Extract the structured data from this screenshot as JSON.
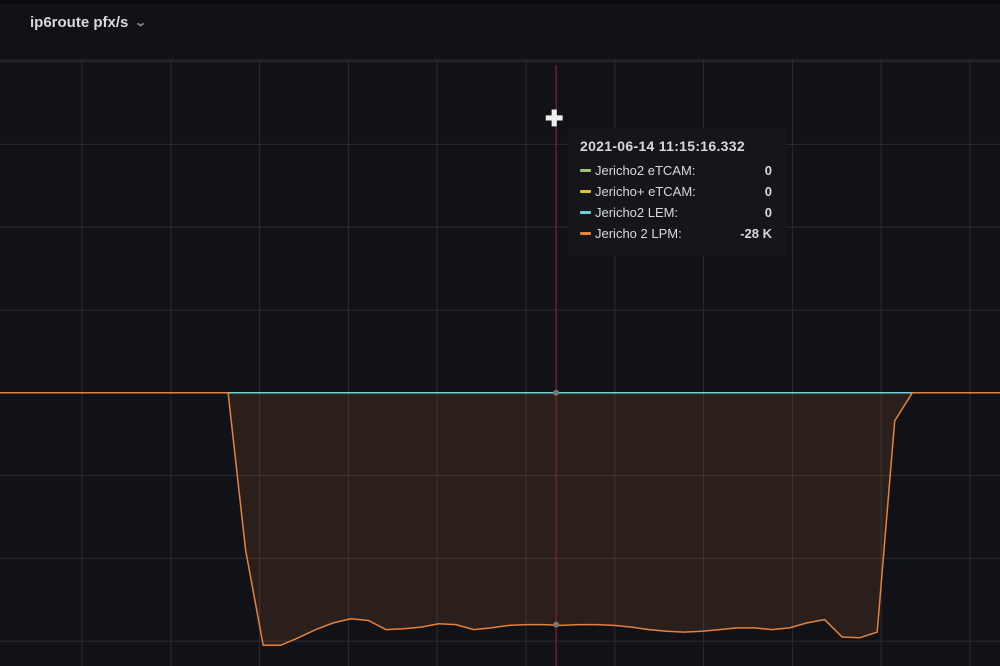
{
  "panel": {
    "title": "ip6route pfx/s"
  },
  "tooltip": {
    "time": "2021-06-14 11:15:16.332",
    "rows": [
      {
        "name": "Jericho2 eTCAM:",
        "value": "0",
        "color": "#a3c26b"
      },
      {
        "name": "Jericho+ eTCAM:",
        "value": "0",
        "color": "#e0c03c"
      },
      {
        "name": "Jericho2 LEM:",
        "value": "0",
        "color": "#6fd0d8"
      },
      {
        "name": "Jericho 2 LPM:",
        "value": "-28 K",
        "color": "#e5823d"
      }
    ]
  },
  "chart_data": {
    "type": "area",
    "title": "ip6route pfx/s",
    "xlabel": "",
    "ylabel": "",
    "y_unit": "K",
    "ylim": [
      -33,
      42
    ],
    "grid": true,
    "legend": "none (tooltip)",
    "crosshair_index": 31.7,
    "series": [
      {
        "name": "Jericho2 eTCAM",
        "color": "#a3c26b",
        "values": "zeros"
      },
      {
        "name": "Jericho+ eTCAM",
        "color": "#e0c03c",
        "values": "zeros"
      },
      {
        "name": "Jericho2 LEM",
        "color": "#6fd0d8",
        "values": "zeros"
      },
      {
        "name": "Jericho 2 LPM",
        "color": "#e5823d",
        "fill": true,
        "values": [
          0,
          0,
          0,
          0,
          0,
          0,
          0,
          0,
          0,
          0,
          0,
          0,
          0,
          0,
          -19,
          -30.5,
          -30.5,
          -29.6,
          -28.6,
          -27.8,
          -27.3,
          -27.5,
          -28.6,
          -28.5,
          -28.3,
          -27.9,
          -28.0,
          -28.6,
          -28.4,
          -28.1,
          -28.0,
          -28.0,
          -28.1,
          -28.0,
          -28.0,
          -28.1,
          -28.3,
          -28.6,
          -28.8,
          -28.9,
          -28.8,
          -28.6,
          -28.4,
          -28.4,
          -28.6,
          -28.4,
          -27.8,
          -27.4,
          -29.5,
          -29.6,
          -28.9,
          -3.4,
          0,
          0,
          0,
          0,
          0,
          0
        ]
      }
    ]
  }
}
